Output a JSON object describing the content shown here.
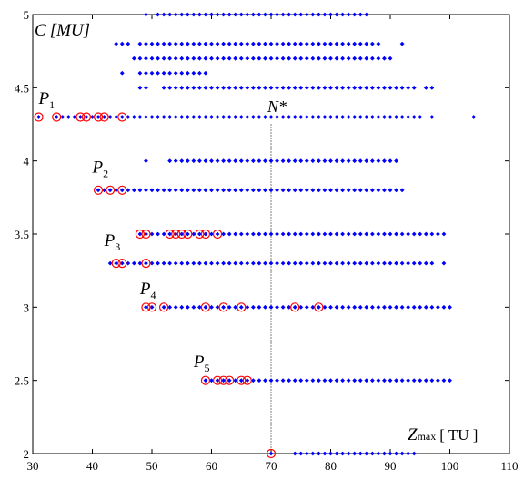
{
  "colors": {
    "dot": "#0000ff",
    "marker": "#ff0000",
    "axis": "#000000",
    "ref_line": "#000000",
    "background": "#ffffff"
  },
  "chart_data": {
    "type": "scatter",
    "title": "",
    "xlim": [
      30,
      110
    ],
    "ylim": [
      2,
      5
    ],
    "xticks": [
      30,
      40,
      50,
      60,
      70,
      80,
      90,
      100,
      110
    ],
    "yticks": [
      2,
      2.5,
      3,
      3.5,
      4,
      4.5,
      5
    ],
    "grid": false,
    "legend": "none",
    "xlabel": {
      "main": "Z",
      "sub": "max",
      "unit": "[ TU ]"
    },
    "ylabel": {
      "main": "C",
      "unit": "[MU]"
    },
    "reference_line": {
      "x": 70,
      "style": "dotted",
      "label": "N*"
    },
    "point_labels": [
      {
        "main": "P",
        "sub": "1",
        "x": 31,
        "y": 4.39
      },
      {
        "main": "P",
        "sub": "2",
        "x": 40,
        "y": 3.92
      },
      {
        "main": "P",
        "sub": "3",
        "x": 42,
        "y": 3.42
      },
      {
        "main": "P",
        "sub": "4",
        "x": 48,
        "y": 3.09
      },
      {
        "main": "P",
        "sub": "5",
        "x": 57,
        "y": 2.59
      }
    ],
    "dot_rows": [
      {
        "y": 5.0,
        "segments": [
          [
            49,
            49
          ],
          [
            51,
            86
          ]
        ]
      },
      {
        "y": 4.8,
        "segments": [
          [
            44,
            46
          ],
          [
            48,
            88
          ],
          [
            92,
            92
          ]
        ]
      },
      {
        "y": 4.7,
        "segments": [
          [
            47,
            90
          ]
        ]
      },
      {
        "y": 4.6,
        "segments": [
          [
            45,
            45
          ],
          [
            48,
            59
          ]
        ]
      },
      {
        "y": 4.5,
        "segments": [
          [
            48,
            49
          ],
          [
            52,
            94
          ],
          [
            96,
            97
          ]
        ]
      },
      {
        "y": 4.3,
        "segments": [
          [
            31,
            31
          ],
          [
            34,
            95
          ],
          [
            97,
            97
          ],
          [
            104,
            104
          ]
        ]
      },
      {
        "y": 4.0,
        "segments": [
          [
            49,
            49
          ],
          [
            53,
            91
          ]
        ]
      },
      {
        "y": 3.8,
        "segments": [
          [
            41,
            92
          ]
        ]
      },
      {
        "y": 3.5,
        "segments": [
          [
            48,
            99
          ]
        ]
      },
      {
        "y": 3.3,
        "segments": [
          [
            43,
            97
          ],
          [
            99,
            99
          ]
        ]
      },
      {
        "y": 3.0,
        "segments": [
          [
            49,
            50
          ],
          [
            52,
            100
          ]
        ]
      },
      {
        "y": 2.5,
        "segments": [
          [
            59,
            100
          ]
        ]
      },
      {
        "y": 2.0,
        "segments": [
          [
            70,
            70
          ],
          [
            74,
            94
          ]
        ]
      }
    ],
    "circled_points": [
      {
        "x": 31,
        "y": 4.3
      },
      {
        "x": 34,
        "y": 4.3
      },
      {
        "x": 38,
        "y": 4.3
      },
      {
        "x": 39,
        "y": 4.3
      },
      {
        "x": 41,
        "y": 4.3
      },
      {
        "x": 42,
        "y": 4.3
      },
      {
        "x": 45,
        "y": 4.3
      },
      {
        "x": 41,
        "y": 3.8
      },
      {
        "x": 43,
        "y": 3.8
      },
      {
        "x": 45,
        "y": 3.8
      },
      {
        "x": 48,
        "y": 3.5
      },
      {
        "x": 49,
        "y": 3.5
      },
      {
        "x": 53,
        "y": 3.5
      },
      {
        "x": 54,
        "y": 3.5
      },
      {
        "x": 55,
        "y": 3.5
      },
      {
        "x": 56,
        "y": 3.5
      },
      {
        "x": 58,
        "y": 3.5
      },
      {
        "x": 59,
        "y": 3.5
      },
      {
        "x": 61,
        "y": 3.5
      },
      {
        "x": 44,
        "y": 3.3
      },
      {
        "x": 45,
        "y": 3.3
      },
      {
        "x": 49,
        "y": 3.3
      },
      {
        "x": 49,
        "y": 3.0
      },
      {
        "x": 50,
        "y": 3.0
      },
      {
        "x": 52,
        "y": 3.0
      },
      {
        "x": 59,
        "y": 3.0
      },
      {
        "x": 62,
        "y": 3.0
      },
      {
        "x": 65,
        "y": 3.0
      },
      {
        "x": 74,
        "y": 3.0
      },
      {
        "x": 78,
        "y": 3.0
      },
      {
        "x": 59,
        "y": 2.5
      },
      {
        "x": 61,
        "y": 2.5
      },
      {
        "x": 62,
        "y": 2.5
      },
      {
        "x": 63,
        "y": 2.5
      },
      {
        "x": 65,
        "y": 2.5
      },
      {
        "x": 66,
        "y": 2.5
      },
      {
        "x": 70,
        "y": 2.0
      }
    ]
  }
}
